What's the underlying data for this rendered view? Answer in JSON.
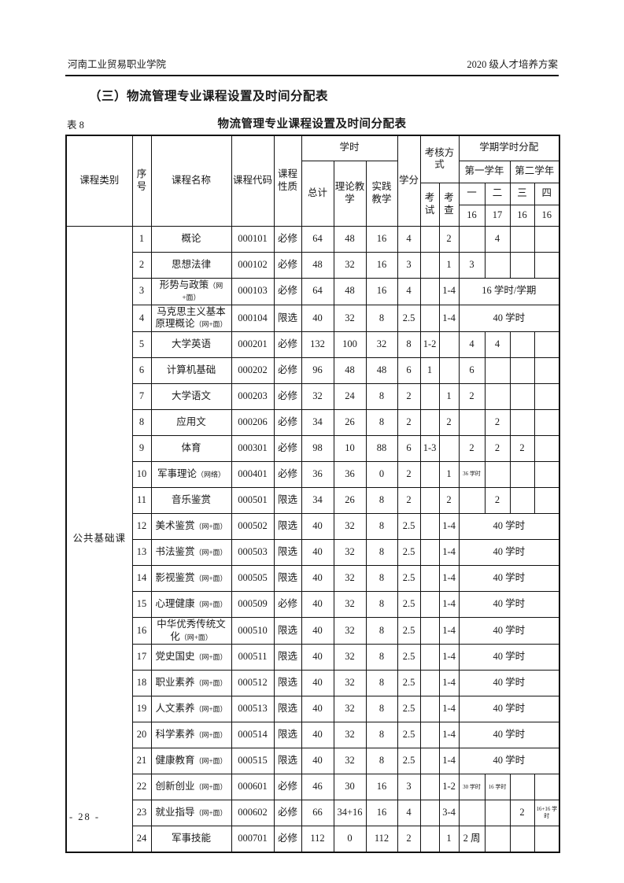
{
  "page": {
    "header_left": "河南工业贸易职业学院",
    "header_right": "2020 级人才培养方案",
    "section_title": "（三）物流管理专业课程设置及时间分配表",
    "table_no": "表 8",
    "table_title": "物流管理专业课程设置及时间分配表",
    "page_number": "- 28 -"
  },
  "table": {
    "headers": {
      "category": "课程类别",
      "no": "序号",
      "name": "课程名称",
      "code": "课程代码",
      "nature": "课程性质",
      "hours": "学时",
      "total": "总计",
      "theory": "理论教学",
      "practice": "实践教学",
      "credits": "学分",
      "assessment": "考核方式",
      "exam": "考试",
      "check": "考查",
      "semester_alloc": "学期学时分配",
      "year1": "第一学年",
      "year2": "第二学年",
      "sem1": "一",
      "sem2": "二",
      "sem3": "三",
      "sem4": "四",
      "weeks1": "16",
      "weeks2": "17",
      "weeks3": "16",
      "weeks4": "16"
    },
    "category_label": "公共基础课",
    "rows": [
      {
        "no": "1",
        "name": "概论",
        "note": "",
        "code": "000101",
        "nature": "必修",
        "total": "64",
        "theory": "48",
        "practice": "16",
        "credits": "4",
        "exam": "",
        "check": "2",
        "span": "",
        "s1": "",
        "s2": "4",
        "s3": "",
        "s4": ""
      },
      {
        "no": "2",
        "name": "思想法律",
        "note": "",
        "code": "000102",
        "nature": "必修",
        "total": "48",
        "theory": "32",
        "practice": "16",
        "credits": "3",
        "exam": "",
        "check": "1",
        "span": "",
        "s1": "3",
        "s2": "",
        "s3": "",
        "s4": ""
      },
      {
        "no": "3",
        "name": "形势与政策",
        "note": "（网+面）",
        "code": "000103",
        "nature": "必修",
        "total": "64",
        "theory": "48",
        "practice": "16",
        "credits": "4",
        "exam": "",
        "check": "1-4",
        "span": "16 学时/学期",
        "s1": "",
        "s2": "",
        "s3": "",
        "s4": ""
      },
      {
        "no": "4",
        "name": "马克思主义基本原理概论",
        "note": "（网+面）",
        "code": "000104",
        "nature": "限选",
        "total": "40",
        "theory": "32",
        "practice": "8",
        "credits": "2.5",
        "exam": "",
        "check": "1-4",
        "span": "40 学时",
        "s1": "",
        "s2": "",
        "s3": "",
        "s4": ""
      },
      {
        "no": "5",
        "name": "大学英语",
        "note": "",
        "code": "000201",
        "nature": "必修",
        "total": "132",
        "theory": "100",
        "practice": "32",
        "credits": "8",
        "exam": "1-2",
        "check": "",
        "span": "",
        "s1": "4",
        "s2": "4",
        "s3": "",
        "s4": ""
      },
      {
        "no": "6",
        "name": "计算机基础",
        "note": "",
        "code": "000202",
        "nature": "必修",
        "total": "96",
        "theory": "48",
        "practice": "48",
        "credits": "6",
        "exam": "1",
        "check": "",
        "span": "",
        "s1": "6",
        "s2": "",
        "s3": "",
        "s4": ""
      },
      {
        "no": "7",
        "name": "大学语文",
        "note": "",
        "code": "000203",
        "nature": "必修",
        "total": "32",
        "theory": "24",
        "practice": "8",
        "credits": "2",
        "exam": "",
        "check": "1",
        "span": "",
        "s1": "2",
        "s2": "",
        "s3": "",
        "s4": ""
      },
      {
        "no": "8",
        "name": "应用文",
        "note": "",
        "code": "000206",
        "nature": "必修",
        "total": "34",
        "theory": "26",
        "practice": "8",
        "credits": "2",
        "exam": "",
        "check": "2",
        "span": "",
        "s1": "",
        "s2": "2",
        "s3": "",
        "s4": ""
      },
      {
        "no": "9",
        "name": "体育",
        "note": "",
        "code": "000301",
        "nature": "必修",
        "total": "98",
        "theory": "10",
        "practice": "88",
        "credits": "6",
        "exam": "1-3",
        "check": "",
        "span": "",
        "s1": "2",
        "s2": "2",
        "s3": "2",
        "s4": ""
      },
      {
        "no": "10",
        "name": "军事理论",
        "note": "（网络）",
        "code": "000401",
        "nature": "必修",
        "total": "36",
        "theory": "36",
        "practice": "0",
        "credits": "2",
        "exam": "",
        "check": "1",
        "span": "",
        "s1": "36 学时",
        "s2": "",
        "s3": "",
        "s4": ""
      },
      {
        "no": "11",
        "name": "音乐鉴赏",
        "note": "",
        "code": "000501",
        "nature": "限选",
        "total": "34",
        "theory": "26",
        "practice": "8",
        "credits": "2",
        "exam": "",
        "check": "2",
        "span": "",
        "s1": "",
        "s2": "2",
        "s3": "",
        "s4": ""
      },
      {
        "no": "12",
        "name": "美术鉴赏",
        "note": "（网+面）",
        "code": "000502",
        "nature": "限选",
        "total": "40",
        "theory": "32",
        "practice": "8",
        "credits": "2.5",
        "exam": "",
        "check": "1-4",
        "span": "40 学时",
        "s1": "",
        "s2": "",
        "s3": "",
        "s4": ""
      },
      {
        "no": "13",
        "name": "书法鉴赏",
        "note": "（网+面）",
        "code": "000503",
        "nature": "限选",
        "total": "40",
        "theory": "32",
        "practice": "8",
        "credits": "2.5",
        "exam": "",
        "check": "1-4",
        "span": "40 学时",
        "s1": "",
        "s2": "",
        "s3": "",
        "s4": ""
      },
      {
        "no": "14",
        "name": "影视鉴赏",
        "note": "（网+面）",
        "code": "000505",
        "nature": "限选",
        "total": "40",
        "theory": "32",
        "practice": "8",
        "credits": "2.5",
        "exam": "",
        "check": "1-4",
        "span": "40 学时",
        "s1": "",
        "s2": "",
        "s3": "",
        "s4": ""
      },
      {
        "no": "15",
        "name": "心理健康",
        "note": "（网+面）",
        "code": "000509",
        "nature": "必修",
        "total": "40",
        "theory": "32",
        "practice": "8",
        "credits": "2.5",
        "exam": "",
        "check": "1-4",
        "span": "40 学时",
        "s1": "",
        "s2": "",
        "s3": "",
        "s4": ""
      },
      {
        "no": "16",
        "name": "中华优秀传统文化",
        "note": "（网+面）",
        "code": "000510",
        "nature": "限选",
        "total": "40",
        "theory": "32",
        "practice": "8",
        "credits": "2.5",
        "exam": "",
        "check": "1-4",
        "span": "40 学时",
        "s1": "",
        "s2": "",
        "s3": "",
        "s4": ""
      },
      {
        "no": "17",
        "name": "党史国史",
        "note": "（网+面）",
        "code": "000511",
        "nature": "限选",
        "total": "40",
        "theory": "32",
        "practice": "8",
        "credits": "2.5",
        "exam": "",
        "check": "1-4",
        "span": "40 学时",
        "s1": "",
        "s2": "",
        "s3": "",
        "s4": ""
      },
      {
        "no": "18",
        "name": "职业素养",
        "note": "（网+面）",
        "code": "000512",
        "nature": "限选",
        "total": "40",
        "theory": "32",
        "practice": "8",
        "credits": "2.5",
        "exam": "",
        "check": "1-4",
        "span": "40 学时",
        "s1": "",
        "s2": "",
        "s3": "",
        "s4": ""
      },
      {
        "no": "19",
        "name": "人文素养",
        "note": "（网+面）",
        "code": "000513",
        "nature": "限选",
        "total": "40",
        "theory": "32",
        "practice": "8",
        "credits": "2.5",
        "exam": "",
        "check": "1-4",
        "span": "40 学时",
        "s1": "",
        "s2": "",
        "s3": "",
        "s4": ""
      },
      {
        "no": "20",
        "name": "科学素养",
        "note": "（网+面）",
        "code": "000514",
        "nature": "限选",
        "total": "40",
        "theory": "32",
        "practice": "8",
        "credits": "2.5",
        "exam": "",
        "check": "1-4",
        "span": "40 学时",
        "s1": "",
        "s2": "",
        "s3": "",
        "s4": ""
      },
      {
        "no": "21",
        "name": "健康教育",
        "note": "（网+面）",
        "code": "000515",
        "nature": "限选",
        "total": "40",
        "theory": "32",
        "practice": "8",
        "credits": "2.5",
        "exam": "",
        "check": "1-4",
        "span": "40 学时",
        "s1": "",
        "s2": "",
        "s3": "",
        "s4": ""
      },
      {
        "no": "22",
        "name": "创新创业",
        "note": "（网+面）",
        "code": "000601",
        "nature": "必修",
        "total": "46",
        "theory": "30",
        "practice": "16",
        "credits": "3",
        "exam": "",
        "check": "1-2",
        "span": "",
        "s1": "30 学时",
        "s2": "16 学时",
        "s3": "",
        "s4": ""
      },
      {
        "no": "23",
        "name": "就业指导",
        "note": "（网+面）",
        "code": "000602",
        "nature": "必修",
        "total": "66",
        "theory": "34+16",
        "practice": "16",
        "credits": "4",
        "exam": "",
        "check": "3-4",
        "span": "",
        "s1": "",
        "s2": "",
        "s3": "2",
        "s4": "16+16 学时"
      },
      {
        "no": "24",
        "name": "军事技能",
        "note": "",
        "code": "000701",
        "nature": "必修",
        "total": "112",
        "theory": "0",
        "practice": "112",
        "credits": "2",
        "exam": "",
        "check": "1",
        "span": "",
        "s1": "2 周",
        "s2": "",
        "s3": "",
        "s4": ""
      }
    ]
  }
}
